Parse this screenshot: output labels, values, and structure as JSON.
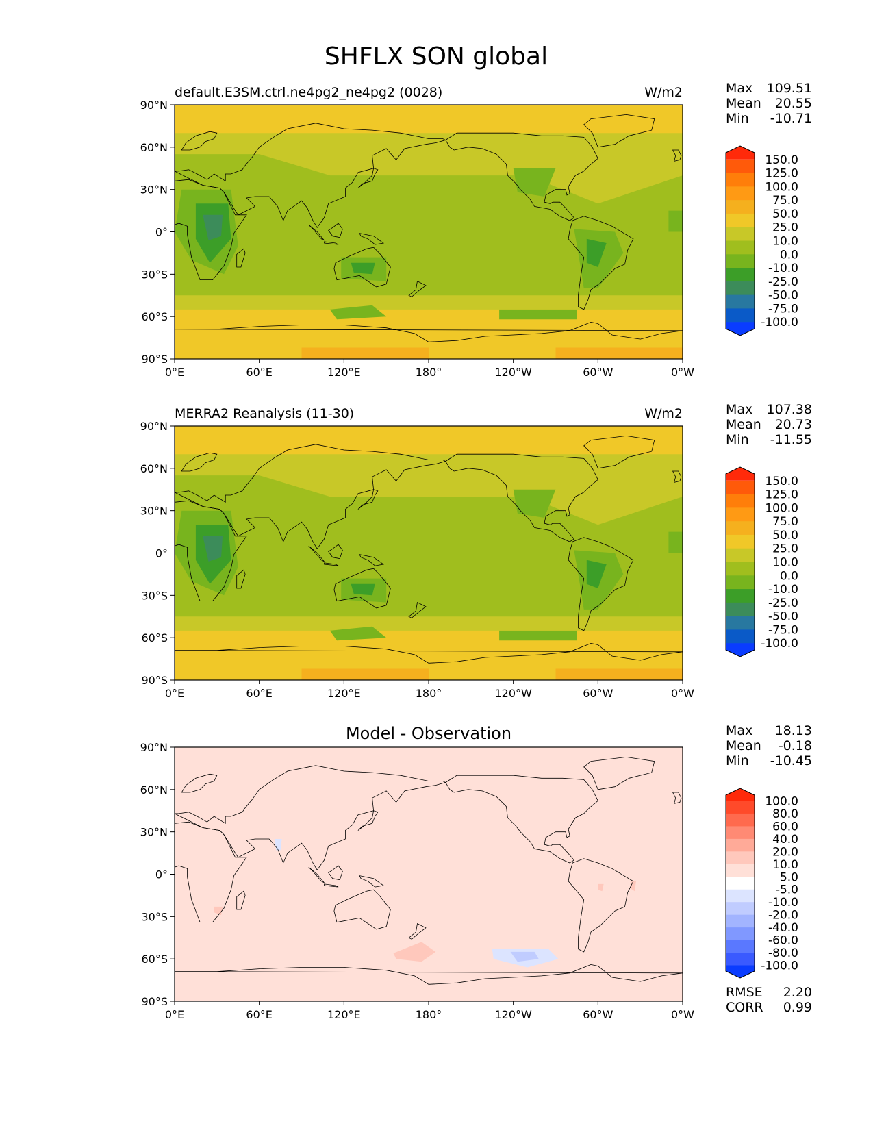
{
  "title": "SHFLX SON global",
  "colors": {
    "land": "#8fbf3a",
    "coast": "#000000",
    "panel_border": "#000000"
  },
  "axes": {
    "lat_ticks": [
      "90°N",
      "60°N",
      "30°N",
      "0°",
      "30°S",
      "60°S",
      "90°S"
    ],
    "lon_ticks": [
      "0°E",
      "60°E",
      "120°E",
      "180°",
      "120°W",
      "60°W",
      "0°W"
    ]
  },
  "panels": [
    {
      "left_title": "default.E3SM.ctrl.ne4pg2_ne4pg2 (0028)",
      "center_title": "",
      "units": "W/m2",
      "stats": [
        {
          "label": "Max",
          "value": "109.51"
        },
        {
          "label": "Mean",
          "value": "20.55"
        },
        {
          "label": "Min",
          "value": "-10.71"
        }
      ],
      "colorbar": {
        "labels": [
          "150.0",
          "125.0",
          "100.0",
          "75.0",
          "50.0",
          "25.0",
          "10.0",
          "0.0",
          "-10.0",
          "-25.0",
          "-50.0",
          "-75.0",
          "-100.0"
        ],
        "colors": [
          "#ff2a0a",
          "#ff5a0a",
          "#ff7e0a",
          "#ff9a14",
          "#f5b01e",
          "#f0c828",
          "#c8c828",
          "#a0be1e",
          "#78b41e",
          "#3c9e28",
          "#3c8c5a",
          "#2878a0",
          "#0a5ac8",
          "#0a3cff"
        ]
      },
      "footer": []
    },
    {
      "left_title": "MERRA2 Reanalysis (11-30)",
      "center_title": "",
      "units": "W/m2",
      "stats": [
        {
          "label": "Max",
          "value": "107.38"
        },
        {
          "label": "Mean",
          "value": "20.73"
        },
        {
          "label": "Min",
          "value": "-11.55"
        }
      ],
      "colorbar": {
        "labels": [
          "150.0",
          "125.0",
          "100.0",
          "75.0",
          "50.0",
          "25.0",
          "10.0",
          "0.0",
          "-10.0",
          "-25.0",
          "-50.0",
          "-75.0",
          "-100.0"
        ],
        "colors": [
          "#ff2a0a",
          "#ff5a0a",
          "#ff7e0a",
          "#ff9a14",
          "#f5b01e",
          "#f0c828",
          "#c8c828",
          "#a0be1e",
          "#78b41e",
          "#3c9e28",
          "#3c8c5a",
          "#2878a0",
          "#0a5ac8",
          "#0a3cff"
        ]
      },
      "footer": []
    },
    {
      "left_title": "",
      "center_title": "Model - Observation",
      "units": "",
      "stats": [
        {
          "label": "Max",
          "value": "18.13"
        },
        {
          "label": "Mean",
          "value": "-0.18"
        },
        {
          "label": "Min",
          "value": "-10.45"
        }
      ],
      "colorbar": {
        "labels": [
          "100.0",
          "80.0",
          "60.0",
          "40.0",
          "20.0",
          "10.0",
          "5.0",
          "-5.0",
          "-10.0",
          "-20.0",
          "-40.0",
          "-60.0",
          "-80.0",
          "-100.0"
        ],
        "colors": [
          "#ff2a0a",
          "#ff4a2a",
          "#ff6a4e",
          "#ff8a74",
          "#ffaa98",
          "#ffc8bc",
          "#ffe0d8",
          "#ffffff",
          "#dce4ff",
          "#c0ccff",
          "#a2b4ff",
          "#8098ff",
          "#5a78ff",
          "#3a5aff",
          "#0a3cff"
        ]
      },
      "footer": [
        {
          "label": "RMSE",
          "value": "2.20"
        },
        {
          "label": "CORR",
          "value": "0.99"
        }
      ]
    }
  ],
  "chart_data": [
    {
      "type": "heatmap",
      "title": "default.E3SM.ctrl.ne4pg2_ne4pg2 (0028)",
      "variable": "SHFLX",
      "season": "SON",
      "units": "W/m2",
      "xlabel": "",
      "ylabel": "",
      "xlim": [
        0,
        360
      ],
      "ylim": [
        -90,
        90
      ],
      "x_ticks": [
        "0°E",
        "60°E",
        "120°E",
        "180°",
        "120°W",
        "60°W",
        "0°W"
      ],
      "y_ticks": [
        "90°N",
        "60°N",
        "30°N",
        "0°",
        "30°S",
        "60°S",
        "90°S"
      ],
      "stats": {
        "max": 109.51,
        "mean": 20.55,
        "min": -10.71
      },
      "levels": [
        -100,
        -75,
        -50,
        -25,
        -10,
        0,
        10,
        25,
        50,
        75,
        100,
        125,
        150
      ]
    },
    {
      "type": "heatmap",
      "title": "MERRA2 Reanalysis (11-30)",
      "variable": "SHFLX",
      "season": "SON",
      "units": "W/m2",
      "xlabel": "",
      "ylabel": "",
      "xlim": [
        0,
        360
      ],
      "ylim": [
        -90,
        90
      ],
      "x_ticks": [
        "0°E",
        "60°E",
        "120°E",
        "180°",
        "120°W",
        "60°W",
        "0°W"
      ],
      "y_ticks": [
        "90°N",
        "60°N",
        "30°N",
        "0°",
        "30°S",
        "60°S",
        "90°S"
      ],
      "stats": {
        "max": 107.38,
        "mean": 20.73,
        "min": -11.55
      },
      "levels": [
        -100,
        -75,
        -50,
        -25,
        -10,
        0,
        10,
        25,
        50,
        75,
        100,
        125,
        150
      ]
    },
    {
      "type": "heatmap",
      "title": "Model - Observation",
      "variable": "SHFLX",
      "season": "SON",
      "units": "",
      "xlabel": "",
      "ylabel": "",
      "xlim": [
        0,
        360
      ],
      "ylim": [
        -90,
        90
      ],
      "x_ticks": [
        "0°E",
        "60°E",
        "120°E",
        "180°",
        "120°W",
        "60°W",
        "0°W"
      ],
      "y_ticks": [
        "90°N",
        "60°N",
        "30°N",
        "0°",
        "30°S",
        "60°S",
        "90°S"
      ],
      "stats": {
        "max": 18.13,
        "mean": -0.18,
        "min": -10.45,
        "rmse": 2.2,
        "corr": 0.99
      },
      "levels": [
        -100,
        -80,
        -60,
        -40,
        -20,
        -10,
        -5,
        5,
        10,
        20,
        40,
        60,
        80,
        100
      ]
    }
  ]
}
